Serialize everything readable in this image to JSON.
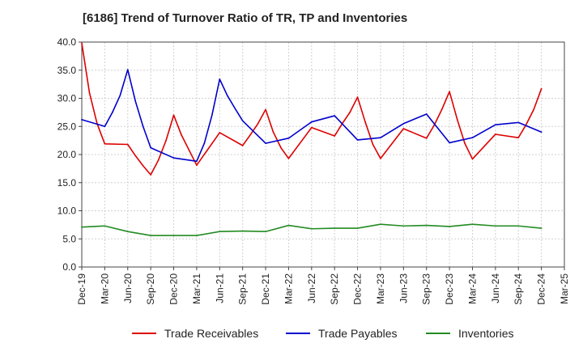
{
  "chart_data": {
    "type": "line",
    "title": "[6186]  Trend of Turnover Ratio of TR, TP and Inventories",
    "xlabel": "",
    "ylabel": "",
    "ylim": [
      0,
      40
    ],
    "yticks": [
      "0.0",
      "5.0",
      "10.0",
      "15.0",
      "20.0",
      "25.0",
      "30.0",
      "35.0",
      "40.0"
    ],
    "x": [
      "Dec-19",
      "Jan-20",
      "Feb-20",
      "Mar-20",
      "Apr-20",
      "May-20",
      "Jun-20",
      "Jul-20",
      "Aug-20",
      "Sep-20",
      "Oct-20",
      "Nov-20",
      "Dec-20",
      "Jan-21",
      "Feb-21",
      "Mar-21",
      "Apr-21",
      "May-21",
      "Jun-21",
      "Jul-21",
      "Aug-21",
      "Sep-21",
      "Oct-21",
      "Nov-21",
      "Dec-21",
      "Jan-22",
      "Feb-22",
      "Mar-22",
      "Apr-22",
      "May-22",
      "Jun-22",
      "Jul-22",
      "Aug-22",
      "Sep-22",
      "Oct-22",
      "Nov-22",
      "Dec-22",
      "Jan-23",
      "Feb-23",
      "Mar-23",
      "Apr-23",
      "May-23",
      "Jun-23",
      "Jul-23",
      "Aug-23",
      "Sep-23",
      "Oct-23",
      "Nov-23",
      "Dec-23",
      "Jan-24",
      "Feb-24",
      "Mar-24",
      "Apr-24",
      "May-24",
      "Jun-24",
      "Jul-24",
      "Aug-24",
      "Sep-24",
      "Oct-24",
      "Nov-24",
      "Dec-24",
      "Jan-25",
      "Feb-25",
      "Mar-25"
    ],
    "xticks": [
      "Dec-19",
      "Mar-20",
      "Jun-20",
      "Sep-20",
      "Dec-20",
      "Mar-21",
      "Jun-21",
      "Sep-21",
      "Dec-21",
      "Mar-22",
      "Jun-22",
      "Sep-22",
      "Dec-22",
      "Mar-23",
      "Jun-23",
      "Sep-23",
      "Dec-23",
      "Mar-24",
      "Jun-24",
      "Sep-24",
      "Dec-24",
      "Mar-25"
    ],
    "grid": true,
    "legend_position": "bottom",
    "series": [
      {
        "name": "Trade Receivables",
        "color": "#dd0000",
        "points": [
          [
            "Dec-19",
            39.8
          ],
          [
            "Jan-20",
            31.0
          ],
          [
            "Feb-20",
            25.5
          ],
          [
            "Mar-20",
            21.9
          ],
          [
            "Jun-20",
            21.8
          ],
          [
            "Jul-20",
            19.8
          ],
          [
            "Aug-20",
            18.0
          ],
          [
            "Sep-20",
            16.4
          ],
          [
            "Oct-20",
            19.0
          ],
          [
            "Nov-20",
            22.5
          ],
          [
            "Dec-20",
            27.0
          ],
          [
            "Jan-21",
            23.5
          ],
          [
            "Feb-21",
            20.8
          ],
          [
            "Mar-21",
            18.1
          ],
          [
            "Jun-21",
            23.9
          ],
          [
            "Sep-21",
            21.6
          ],
          [
            "Oct-21",
            23.5
          ],
          [
            "Nov-21",
            25.5
          ],
          [
            "Dec-21",
            28.0
          ],
          [
            "Jan-22",
            24.0
          ],
          [
            "Feb-22",
            21.2
          ],
          [
            "Mar-22",
            19.3
          ],
          [
            "Jun-22",
            24.8
          ],
          [
            "Sep-22",
            23.3
          ],
          [
            "Oct-22",
            25.5
          ],
          [
            "Nov-22",
            27.5
          ],
          [
            "Dec-22",
            30.2
          ],
          [
            "Jan-23",
            25.8
          ],
          [
            "Feb-23",
            21.8
          ],
          [
            "Mar-23",
            19.3
          ],
          [
            "Jun-23",
            24.6
          ],
          [
            "Sep-23",
            22.9
          ],
          [
            "Oct-23",
            25.2
          ],
          [
            "Nov-23",
            28.0
          ],
          [
            "Dec-23",
            31.2
          ],
          [
            "Jan-24",
            26.3
          ],
          [
            "Feb-24",
            22.0
          ],
          [
            "Mar-24",
            19.2
          ],
          [
            "Jun-24",
            23.6
          ],
          [
            "Sep-24",
            23.0
          ],
          [
            "Oct-24",
            25.3
          ],
          [
            "Nov-24",
            28.0
          ],
          [
            "Dec-24",
            31.7
          ]
        ]
      },
      {
        "name": "Trade Payables",
        "color": "#0000cc",
        "points": [
          [
            "Dec-19",
            26.2
          ],
          [
            "Mar-20",
            25.0
          ],
          [
            "Apr-20",
            27.5
          ],
          [
            "May-20",
            30.5
          ],
          [
            "Jun-20",
            35.1
          ],
          [
            "Jul-20",
            29.5
          ],
          [
            "Aug-20",
            25.0
          ],
          [
            "Sep-20",
            21.2
          ],
          [
            "Dec-20",
            19.4
          ],
          [
            "Mar-21",
            18.8
          ],
          [
            "Apr-21",
            22.0
          ],
          [
            "May-21",
            27.0
          ],
          [
            "Jun-21",
            33.4
          ],
          [
            "Jul-21",
            30.5
          ],
          [
            "Aug-21",
            28.2
          ],
          [
            "Sep-21",
            26.0
          ],
          [
            "Dec-21",
            22.0
          ],
          [
            "Mar-22",
            22.9
          ],
          [
            "Jun-22",
            25.8
          ],
          [
            "Sep-22",
            26.9
          ],
          [
            "Dec-22",
            22.6
          ],
          [
            "Mar-23",
            23.0
          ],
          [
            "Jun-23",
            25.5
          ],
          [
            "Sep-23",
            27.2
          ],
          [
            "Dec-23",
            22.1
          ],
          [
            "Mar-24",
            23.0
          ],
          [
            "Jun-24",
            25.3
          ],
          [
            "Sep-24",
            25.7
          ],
          [
            "Dec-24",
            24.0
          ]
        ]
      },
      {
        "name": "Inventories",
        "color": "#228b22",
        "points": [
          [
            "Dec-19",
            7.1
          ],
          [
            "Mar-20",
            7.3
          ],
          [
            "Jun-20",
            6.3
          ],
          [
            "Sep-20",
            5.6
          ],
          [
            "Dec-20",
            5.6
          ],
          [
            "Mar-21",
            5.6
          ],
          [
            "Jun-21",
            6.3
          ],
          [
            "Sep-21",
            6.4
          ],
          [
            "Dec-21",
            6.3
          ],
          [
            "Mar-22",
            7.4
          ],
          [
            "Jun-22",
            6.8
          ],
          [
            "Sep-22",
            6.9
          ],
          [
            "Dec-22",
            6.9
          ],
          [
            "Mar-23",
            7.6
          ],
          [
            "Jun-23",
            7.3
          ],
          [
            "Sep-23",
            7.4
          ],
          [
            "Dec-23",
            7.2
          ],
          [
            "Mar-24",
            7.6
          ],
          [
            "Jun-24",
            7.3
          ],
          [
            "Sep-24",
            7.3
          ],
          [
            "Dec-24",
            6.9
          ]
        ]
      }
    ]
  }
}
